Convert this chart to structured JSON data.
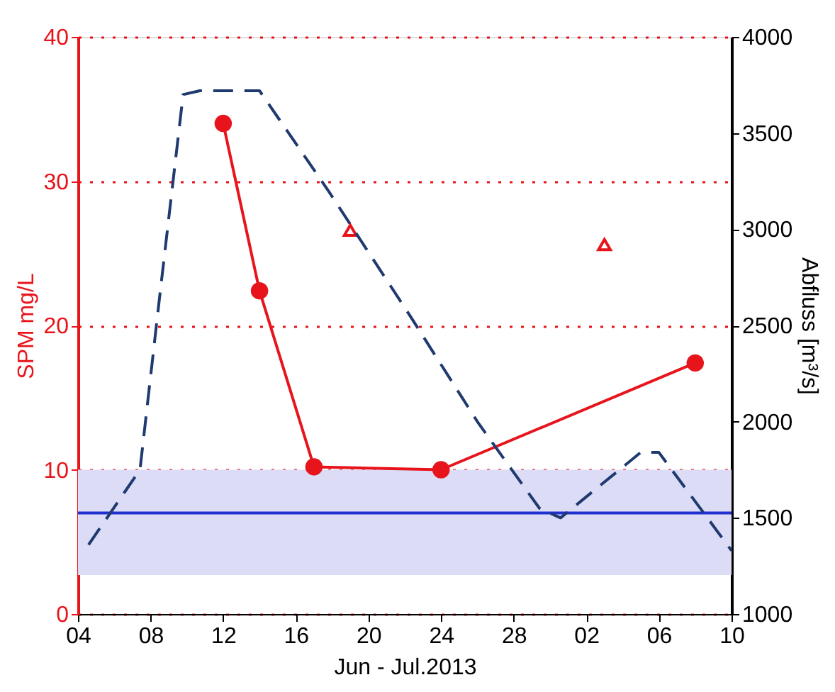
{
  "chart_data": {
    "type": "line",
    "xlabel": "Jun - Jul.2013",
    "ylabel": "SPM mg/L",
    "y2label": "Abfluss [m³/s]",
    "xlim": [
      "2013-06-04",
      "2013-07-10"
    ],
    "xticks": [
      {
        "value": "2013-06-04",
        "label": "04"
      },
      {
        "value": "2013-06-08",
        "label": "08"
      },
      {
        "value": "2013-06-12",
        "label": "12"
      },
      {
        "value": "2013-06-16",
        "label": "16"
      },
      {
        "value": "2013-06-20",
        "label": "20"
      },
      {
        "value": "2013-06-24",
        "label": "24"
      },
      {
        "value": "2013-06-28",
        "label": "28"
      },
      {
        "value": "2013-07-02",
        "label": "02"
      },
      {
        "value": "2013-07-06",
        "label": "06"
      },
      {
        "value": "2013-07-10",
        "label": "10"
      }
    ],
    "ylim": [
      0,
      40
    ],
    "yticks": [
      0,
      10,
      20,
      30,
      40
    ],
    "y2lim": [
      1000,
      4000
    ],
    "y2ticks": [
      1000,
      1500,
      2000,
      2500,
      3000,
      3500,
      4000
    ],
    "grid": "y",
    "bands": [
      {
        "axis": "y",
        "from": 2.7,
        "to": 10,
        "color": "#dcdcf7"
      }
    ],
    "ref_lines": [
      {
        "axis": "y",
        "value": 7,
        "color": "#1f2fd0",
        "line_style": "solid"
      }
    ],
    "series": [
      {
        "color": "#e8141c",
        "marker": "circle",
        "line_style": "solid",
        "x": [
          "2013-06-12",
          "2013-06-14",
          "2013-06-17",
          "2013-06-24",
          "2013-07-08"
        ],
        "values": [
          34,
          22.4,
          10.2,
          10,
          17.4
        ]
      },
      {
        "type": "scatter",
        "color": "#e8141c",
        "marker": "triangle",
        "x": [
          "2013-06-19",
          "2013-07-03"
        ],
        "values": [
          26.6,
          25.6
        ]
      },
      {
        "type": "line",
        "axis": "y2",
        "color": "#1f3a6e",
        "marker": "none",
        "line_style": "dashed",
        "x": [
          "2013-06-04T14:00",
          "2013-06-07T10:00",
          "2013-06-08T12:00",
          "2013-06-09T19:00",
          "2013-06-10T17:00",
          "2013-06-14T00:00",
          "2013-06-17T19:00",
          "2013-06-22T07:00",
          "2013-06-26T00:00",
          "2013-06-29T10:00",
          "2013-06-30T14:00",
          "2013-07-05T00:00",
          "2013-07-06T00:00",
          "2013-07-10T00:00"
        ],
        "values": [
          1360,
          1750,
          2650,
          3700,
          3720,
          3720,
          3200,
          2550,
          2000,
          1550,
          1500,
          1840,
          1840,
          1330
        ]
      }
    ]
  }
}
